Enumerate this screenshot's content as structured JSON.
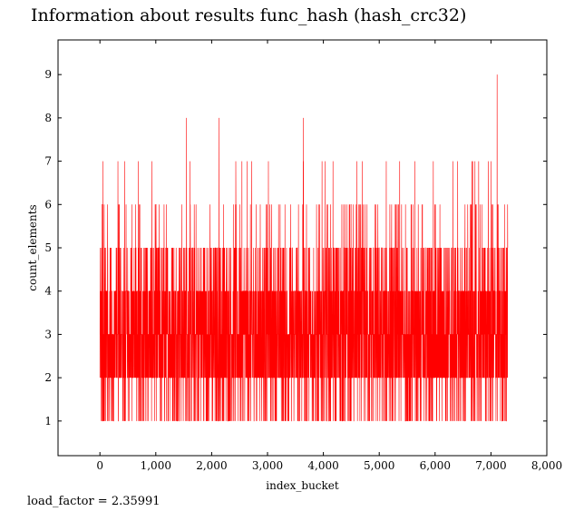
{
  "page": {
    "title": "Information about results func_hash (hash_crc32)",
    "footer": "load_factor = 2.35991"
  },
  "chart_data": {
    "type": "line",
    "title": "Information about results func_hash (hash_crc32)",
    "xlabel": "index_bucket",
    "ylabel": "count_elements",
    "xlim": [
      -750,
      8000
    ],
    "ylim": [
      0.2,
      9.8
    ],
    "xticks": [
      0,
      1000,
      2000,
      3000,
      4000,
      5000,
      6000,
      7000,
      8000
    ],
    "xtick_labels": [
      "0",
      "1,000",
      "2,000",
      "3,000",
      "4,000",
      "5,000",
      "6,000",
      "7,000",
      "8,000"
    ],
    "yticks": [
      1,
      2,
      3,
      4,
      5,
      6,
      7,
      8,
      9
    ],
    "ytick_labels": [
      "1",
      "2",
      "3",
      "4",
      "5",
      "6",
      "7",
      "8",
      "9"
    ],
    "grid": false,
    "color": "#ff0000",
    "series": [
      {
        "name": "",
        "x_range": [
          0,
          7300
        ],
        "value_range": [
          1,
          9
        ],
        "notable_points": [
          {
            "x": 1550,
            "y": 8
          },
          {
            "x": 2130,
            "y": 8
          },
          {
            "x": 3640,
            "y": 8
          },
          {
            "x": 7110,
            "y": 9
          }
        ]
      }
    ]
  }
}
